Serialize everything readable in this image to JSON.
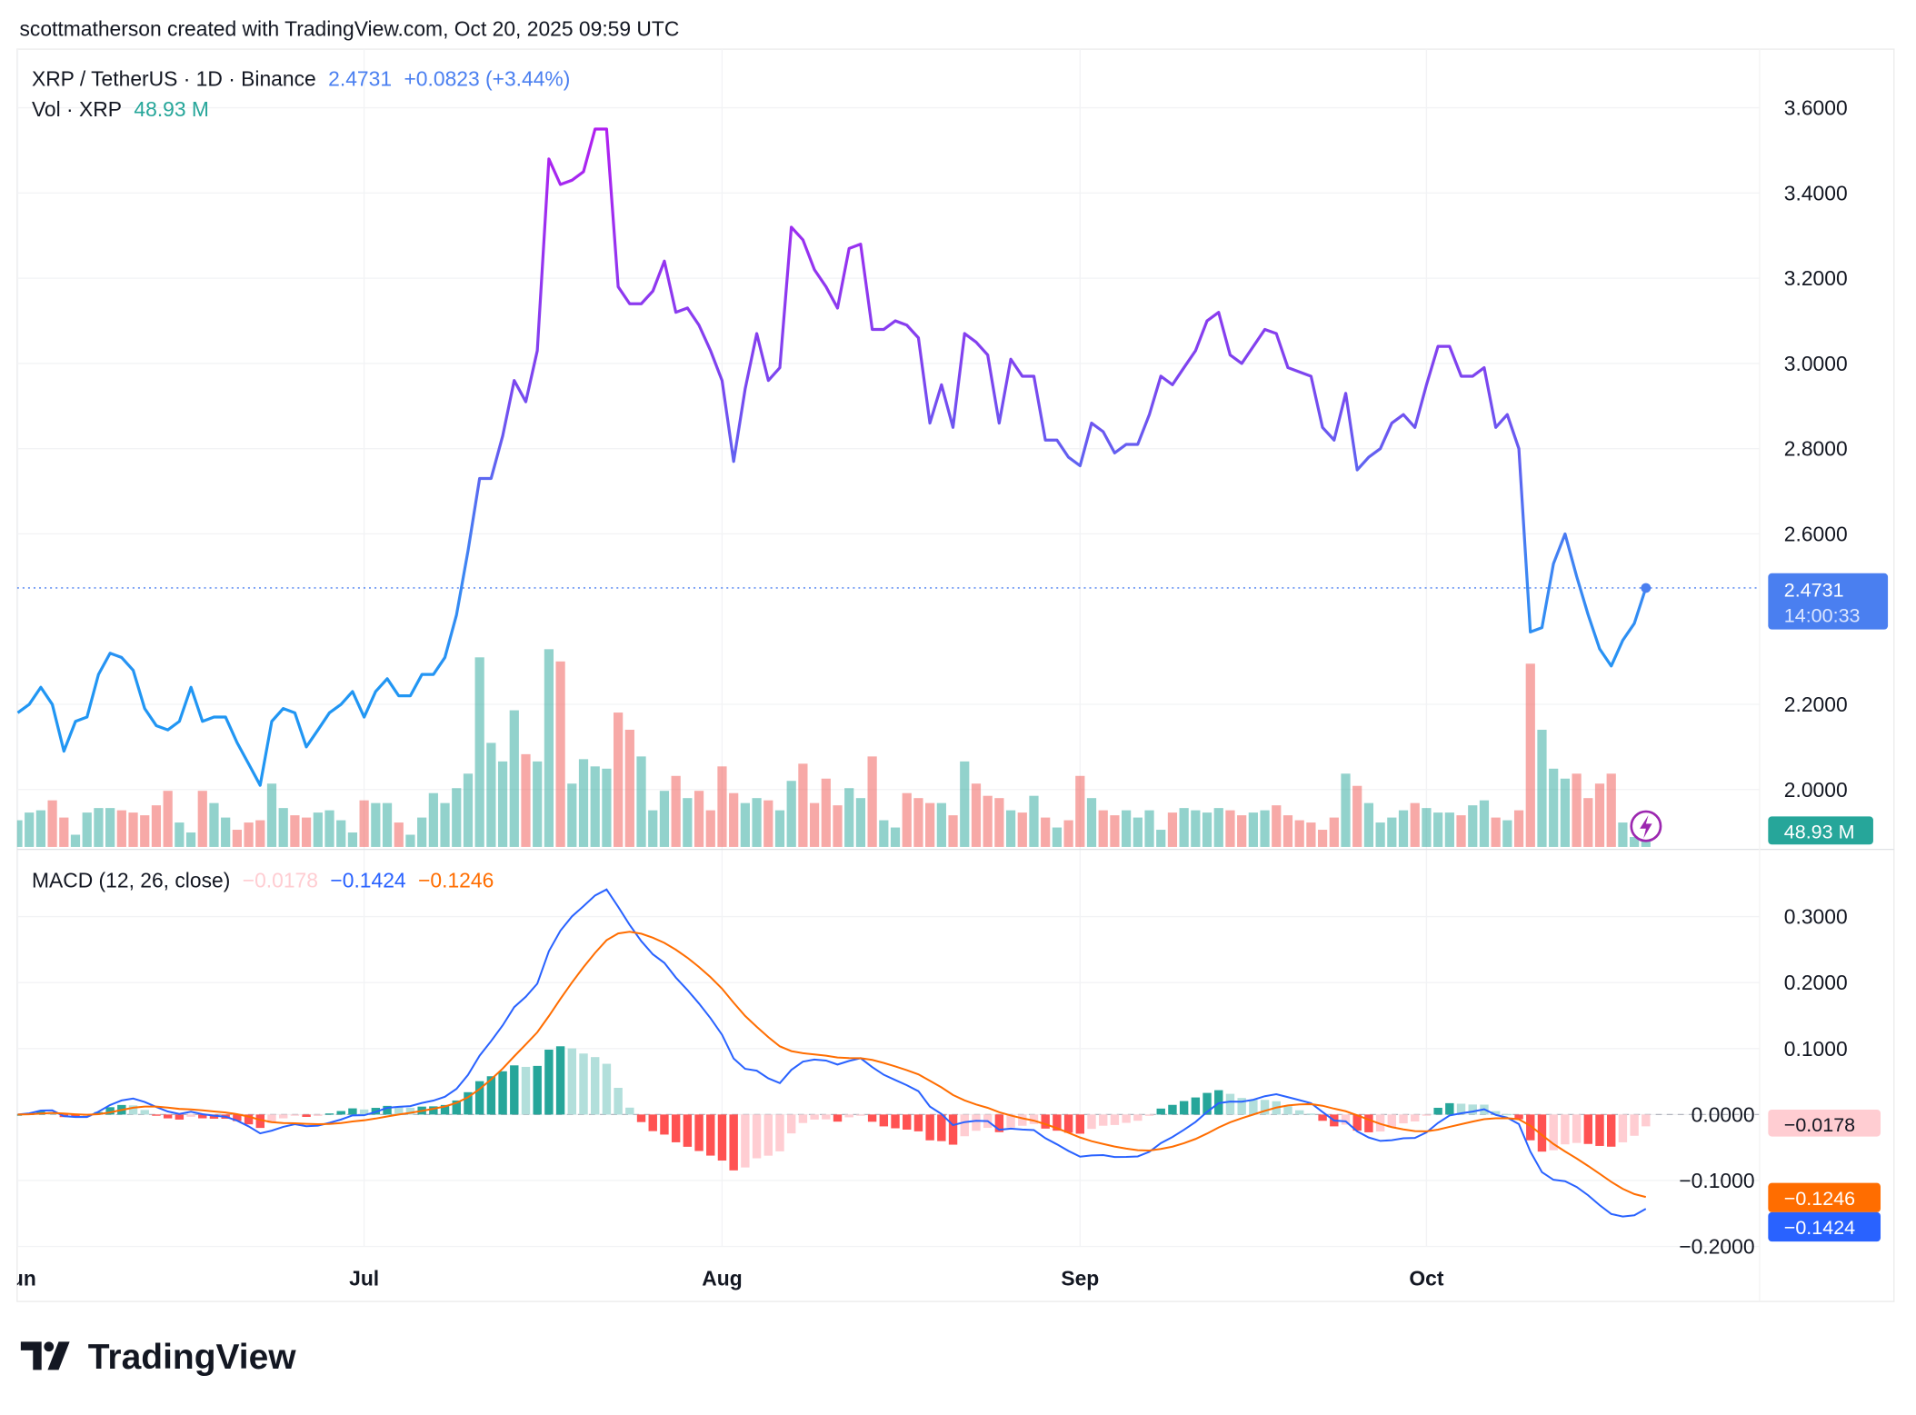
{
  "header": {
    "attribution": "scottmatherson created with TradingView.com, Oct 20, 2025 09:59 UTC"
  },
  "legend": {
    "symbol": "XRP / TetherUS · 1D · Binance",
    "last": "2.4731",
    "change": "+0.0823 (+3.44%)",
    "vol_label": "Vol · XRP",
    "vol_value": "48.93 M",
    "macd_label": "MACD (12, 26, close)",
    "macd_hist": "−0.0178",
    "macd_line": "−0.1424",
    "macd_signal": "−0.1246"
  },
  "badges": {
    "price": "2.4731",
    "countdown": "14:00:33",
    "volume": "48.93 M",
    "hist": "−0.0178",
    "signal": "−0.1246",
    "macd": "−0.1424"
  },
  "logo": "TradingView",
  "colors": {
    "up": "#26a69a",
    "down": "#ef5350",
    "price_low": "#2196f3",
    "price_high": "#b21ff0",
    "macd": "#2962ff",
    "signal": "#ff6d00",
    "accent": "#4a7ff0"
  },
  "chart_data": {
    "type": "line",
    "title": "XRP / TetherUS · 1D · Binance",
    "x_start": "2025-06-01",
    "x_end": "2025-10-20",
    "x_ticks": [
      "Jun",
      "Jul",
      "Aug",
      "Sep",
      "Oct"
    ],
    "price_ticks": [
      "3.6000",
      "3.4000",
      "3.2000",
      "3.0000",
      "2.8000",
      "2.6000",
      "2.2000",
      "2.0000"
    ],
    "macd_ticks": [
      "0.3000",
      "0.2000",
      "0.1000",
      "0.0000",
      "−0.1000",
      "−0.2000"
    ],
    "ylim": [
      1.87,
      3.66
    ],
    "grid": true,
    "close": [
      2.18,
      2.2,
      2.24,
      2.2,
      2.09,
      2.16,
      2.17,
      2.27,
      2.32,
      2.31,
      2.28,
      2.19,
      2.15,
      2.14,
      2.16,
      2.24,
      2.16,
      2.17,
      2.17,
      2.11,
      2.06,
      2.01,
      2.16,
      2.19,
      2.18,
      2.1,
      2.14,
      2.18,
      2.2,
      2.23,
      2.17,
      2.23,
      2.26,
      2.22,
      2.22,
      2.27,
      2.27,
      2.31,
      2.41,
      2.56,
      2.73,
      2.73,
      2.83,
      2.96,
      2.91,
      3.03,
      3.48,
      3.42,
      3.43,
      3.45,
      3.55,
      3.55,
      3.18,
      3.14,
      3.14,
      3.17,
      3.24,
      3.12,
      3.13,
      3.09,
      3.03,
      2.96,
      2.77,
      2.94,
      3.07,
      2.96,
      2.99,
      3.32,
      3.29,
      3.22,
      3.18,
      3.13,
      3.27,
      3.28,
      3.08,
      3.08,
      3.1,
      3.09,
      3.06,
      2.86,
      2.95,
      2.85,
      3.07,
      3.05,
      3.02,
      2.86,
      3.01,
      2.97,
      2.97,
      2.82,
      2.82,
      2.78,
      2.76,
      2.86,
      2.84,
      2.79,
      2.81,
      2.81,
      2.88,
      2.97,
      2.95,
      2.99,
      3.03,
      3.1,
      3.12,
      3.02,
      3.0,
      3.04,
      3.08,
      3.07,
      2.99,
      2.98,
      2.97,
      2.85,
      2.82,
      2.93,
      2.75,
      2.78,
      2.8,
      2.86,
      2.88,
      2.85,
      2.95,
      3.04,
      3.04,
      2.97,
      2.97,
      2.99,
      2.85,
      2.88,
      2.8,
      2.37,
      2.38,
      2.53,
      2.6,
      2.5,
      2.41,
      2.33,
      2.29,
      2.35,
      2.39,
      2.4731
    ],
    "volume_m": [
      59,
      76,
      81,
      103,
      65,
      27,
      76,
      86,
      86,
      81,
      76,
      70,
      92,
      124,
      54,
      32,
      124,
      97,
      65,
      38,
      54,
      59,
      140,
      86,
      70,
      65,
      76,
      81,
      59,
      32,
      103,
      97,
      97,
      54,
      27,
      65,
      119,
      97,
      130,
      162,
      419,
      230,
      189,
      302,
      205,
      189,
      437,
      410,
      140,
      194,
      178,
      173,
      297,
      259,
      200,
      81,
      124,
      157,
      108,
      124,
      81,
      178,
      119,
      97,
      108,
      103,
      81,
      146,
      184,
      97,
      151,
      92,
      130,
      108,
      200,
      59,
      43,
      119,
      108,
      97,
      97,
      70,
      189,
      140,
      113,
      108,
      81,
      76,
      113,
      65,
      43,
      59,
      157,
      108,
      81,
      70,
      81,
      65,
      81,
      38,
      76,
      86,
      81,
      76,
      86,
      81,
      70,
      76,
      81,
      92,
      70,
      59,
      54,
      38,
      65,
      162,
      135,
      97,
      54,
      65,
      81,
      97,
      86,
      76,
      76,
      70,
      92,
      103,
      65,
      59,
      81,
      405,
      259,
      173,
      151,
      162,
      108,
      140,
      162,
      54,
      22,
      48.93
    ]
  }
}
